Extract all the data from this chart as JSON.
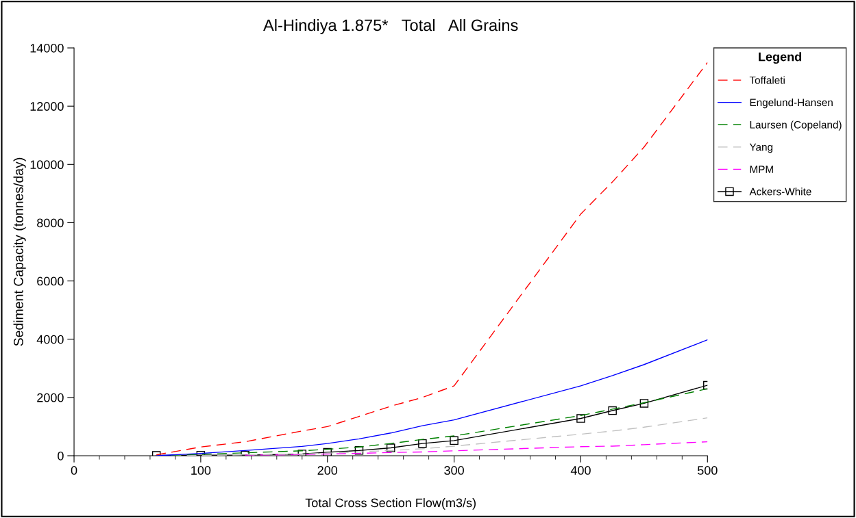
{
  "chart_data": {
    "type": "line",
    "title": "Al-Hindiya 1.875*   Total   All Grains",
    "xlabel": "Total Cross Section Flow(m3/s)",
    "ylabel": "Sediment Capacity (tonnes/day)",
    "x": [
      65,
      100,
      135,
      180,
      200,
      225,
      250,
      275,
      300,
      400,
      425,
      450,
      500
    ],
    "series": [
      {
        "name": "Toffaleti",
        "color": "#ff0000",
        "line_style": "dashed",
        "values": [
          30,
          300,
          480,
          850,
          1000,
          1350,
          1700,
          2000,
          2400,
          8300,
          9400,
          10600,
          13500
        ]
      },
      {
        "name": "Engelund-Hansen",
        "color": "#0000ff",
        "line_style": "solid",
        "values": [
          0,
          80,
          180,
          320,
          420,
          580,
          780,
          1030,
          1230,
          2400,
          2750,
          3130,
          3980
        ]
      },
      {
        "name": "Laursen (Copeland)",
        "color": "#008000",
        "line_style": "dashed",
        "values": [
          0,
          50,
          100,
          170,
          220,
          300,
          420,
          560,
          680,
          1380,
          1600,
          1820,
          2300
        ]
      },
      {
        "name": "Yang",
        "color": "#c0c0c0",
        "line_style": "dashed",
        "values": [
          0,
          10,
          30,
          60,
          90,
          130,
          180,
          240,
          330,
          740,
          850,
          980,
          1300
        ]
      },
      {
        "name": "MPM",
        "color": "#ff00ff",
        "line_style": "dashed",
        "values": [
          null,
          null,
          20,
          40,
          60,
          80,
          110,
          130,
          170,
          310,
          330,
          380,
          480
        ]
      },
      {
        "name": "Ackers-White",
        "color": "#000000",
        "line_style": "solid",
        "marker": "square",
        "values": [
          10,
          20,
          20,
          60,
          120,
          180,
          270,
          420,
          520,
          1280,
          1550,
          1800,
          2420
        ]
      }
    ],
    "xlim": [
      0,
      500
    ],
    "ylim": [
      0,
      14000
    ],
    "xticks": [
      0,
      {
        "value": 20,
        "label": null
      },
      {
        "value": 40,
        "label": null
      },
      {
        "value": 60,
        "label": null
      },
      {
        "value": 80,
        "label": null
      },
      100,
      {
        "value": 120,
        "label": null
      },
      {
        "value": 140,
        "label": null
      },
      {
        "value": 160,
        "label": null
      },
      {
        "value": 180,
        "label": null
      },
      200,
      {
        "value": 220,
        "label": null
      },
      {
        "value": 240,
        "label": null
      },
      {
        "value": 260,
        "label": null
      },
      {
        "value": 280,
        "label": null
      },
      300,
      {
        "value": 320,
        "label": null
      },
      {
        "value": 340,
        "label": null
      },
      {
        "value": 360,
        "label": null
      },
      {
        "value": 380,
        "label": null
      },
      400,
      {
        "value": 420,
        "label": null
      },
      {
        "value": 440,
        "label": null
      },
      {
        "value": 460,
        "label": null
      },
      {
        "value": 480,
        "label": null
      },
      500
    ],
    "yticks": [
      0,
      2000,
      4000,
      6000,
      8000,
      10000,
      12000,
      14000
    ],
    "legend": "right",
    "legend_title": "Legend",
    "grid": false
  }
}
